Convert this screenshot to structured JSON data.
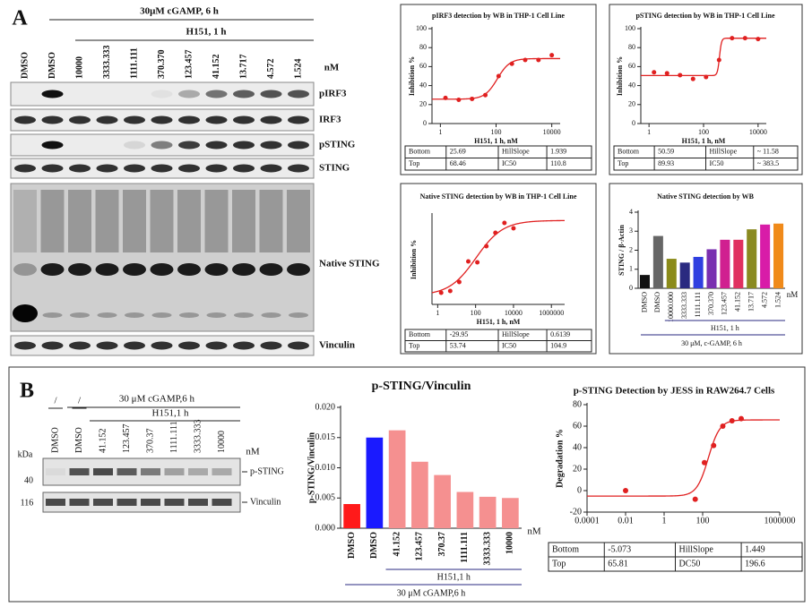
{
  "panel_a": {
    "label": "A",
    "blot": {
      "treatment": "30μM cGAMP, 6 h",
      "drug": "H151, 1 h",
      "lanes": [
        "DMSO",
        "DMSO",
        "10000",
        "3333.333",
        "1111.111",
        "370.370",
        "123.457",
        "41.152",
        "13.717",
        "4.572",
        "1.524"
      ],
      "unit": "nM",
      "rows": [
        "pIRF3",
        "IRF3",
        "pSTING",
        "STING",
        "Native STING",
        "Vinculin"
      ]
    }
  },
  "panel_b": {
    "label": "B",
    "blot": {
      "controls": [
        "/",
        "/"
      ],
      "treatment": "30 μM cGAMP,6 h",
      "drug": "H151,1 h",
      "lanes": [
        "DMSO",
        "DMSO",
        "41.152",
        "123.457",
        "370.37",
        "1111.111",
        "3333.333",
        "10000"
      ],
      "unit": "nM",
      "kda_label": "kDa",
      "markers": [
        40,
        116
      ],
      "rows": [
        "p-STING",
        "Vinculin"
      ]
    }
  },
  "chart_data": [
    {
      "type": "scatter",
      "title": "pIRF3 detection by WB in THP-1 Cell Line",
      "x_label": "H151, 1 h, nM",
      "y_label": "Inhibition %",
      "x": [
        1.524,
        4.572,
        13.717,
        41.152,
        123.457,
        370.37,
        1111.111,
        3333.333,
        10000
      ],
      "values": [
        27,
        25,
        26,
        30,
        50,
        63,
        67,
        67,
        72
      ],
      "color": "#e02020",
      "x_log": true,
      "xlim": [
        0.5,
        20000
      ],
      "xticks": [
        1,
        100,
        10000
      ],
      "ylim": [
        0,
        100
      ],
      "yticks": [
        0,
        20,
        40,
        60,
        80,
        100
      ],
      "fit_curve": true,
      "fit_table": [
        [
          "Bottom",
          "25.69",
          "HillSlope",
          "1.939"
        ],
        [
          "Top",
          "68.46",
          "IC50",
          "110.8"
        ]
      ]
    },
    {
      "type": "scatter",
      "title": "pSTING detection by WB in THP-1 Cell Line",
      "x_label": "H151, 1 h, nM",
      "y_label": "Inhibition %",
      "x": [
        1.524,
        4.572,
        13.717,
        41.152,
        123.457,
        370.37,
        1111.111,
        3333.333,
        10000
      ],
      "values": [
        54,
        53,
        51,
        47,
        49,
        67,
        90,
        90,
        89
      ],
      "color": "#e02020",
      "x_log": true,
      "xlim": [
        0.5,
        20000
      ],
      "xticks": [
        1,
        100,
        10000
      ],
      "ylim": [
        0,
        100
      ],
      "yticks": [
        0,
        20,
        40,
        60,
        80,
        100
      ],
      "fit_curve": true,
      "fit_table": [
        [
          "Bottom",
          "50.59",
          "HillSlope",
          "~ 11.58"
        ],
        [
          "Top",
          "89.93",
          "IC50",
          "~ 383.5"
        ]
      ]
    },
    {
      "type": "scatter",
      "title": "Native STING detection by WB in THP-1 Cell Line",
      "x_label": "H151, 1 h, nM",
      "y_label": "Inhibition %",
      "x": [
        1.524,
        4.572,
        13.717,
        41.152,
        123.457,
        370.37,
        1111.111,
        3333.333,
        10000
      ],
      "values": [
        -27,
        -25,
        -15,
        8,
        7,
        25,
        40,
        51,
        45
      ],
      "color": "#e02020",
      "x_log": true,
      "xlim": [
        0.5,
        5000000
      ],
      "xticks": [
        1,
        100,
        10000,
        1000000
      ],
      "ylim": [
        -40,
        60
      ],
      "fit_curve": true,
      "fit_table": [
        [
          "Bottom",
          "-29.95",
          "HillSlope",
          "0.6139"
        ],
        [
          "Top",
          "53.74",
          "IC50",
          "104.9"
        ]
      ]
    },
    {
      "type": "bar",
      "title": "Native STING detection by WB",
      "y_label": "STING / β-Actin",
      "categories": [
        "DMSO",
        "DMSO",
        "10000.000",
        "3333.333",
        "1111.111",
        "370.370",
        "123.457",
        "41.152",
        "13.717",
        "4.572",
        "1.524"
      ],
      "values": [
        0.7,
        2.75,
        1.55,
        1.35,
        1.65,
        2.05,
        2.55,
        2.55,
        3.1,
        3.35,
        3.4
      ],
      "colors": [
        "#111111",
        "#666666",
        "#8b8b1a",
        "#2a2a80",
        "#2f3fe0",
        "#7a2fb0",
        "#d02090",
        "#e03060",
        "#8a8a20",
        "#d81ca8",
        "#f08a1a"
      ],
      "ylim": [
        0,
        4
      ],
      "yticks": [
        0,
        1,
        2,
        3,
        4
      ],
      "x_unit": "nM",
      "group_labels": [
        "H151, 1 h",
        "30 μM, c-GAMP, 6 h"
      ]
    },
    {
      "type": "bar",
      "title": "p-STING/Vinculin",
      "y_label": "p-STING/Vinculin",
      "categories": [
        "DMSO",
        "DMSO",
        "41.152",
        "123.457",
        "370.37",
        "1111.111",
        "3333.333",
        "10000"
      ],
      "values": [
        0.004,
        0.015,
        0.0162,
        0.011,
        0.0088,
        0.006,
        0.0052,
        0.005
      ],
      "colors": [
        "#ff1a1a",
        "#1a1aff",
        "#f59090",
        "#f59090",
        "#f59090",
        "#f59090",
        "#f59090",
        "#f59090"
      ],
      "ylim": [
        0,
        0.02
      ],
      "yticks": [
        {
          "value": 0,
          "label": "0.000"
        },
        {
          "value": 0.005,
          "label": "0.005"
        },
        {
          "value": 0.01,
          "label": "0.010"
        },
        {
          "value": 0.015,
          "label": "0.015"
        },
        {
          "value": 0.02,
          "label": "0.020"
        }
      ],
      "x_unit": "nM",
      "group_labels": [
        "H151,1 h",
        "30 μM cGAMP,6 h"
      ]
    },
    {
      "type": "scatter",
      "title": "p-STING  Detection by JESS in RAW264.7 Cells",
      "y_label": "Degradation %",
      "x": [
        0.01,
        41.152,
        123.457,
        370.37,
        1111.111,
        3333.333,
        10000
      ],
      "values": [
        0,
        -8,
        26,
        42,
        60,
        65,
        67
      ],
      "color": "#e02020",
      "x_log": true,
      "xlim": [
        0.0001,
        1000000
      ],
      "xticks": [
        0.0001,
        0.01,
        1,
        100,
        1000000
      ],
      "ylim": [
        -20,
        80
      ],
      "yticks": [
        -20,
        0,
        20,
        40,
        60,
        80
      ],
      "fit_curve": true,
      "fit_table": [
        [
          "Bottom",
          "-5.073",
          "HillSlope",
          "1.449"
        ],
        [
          "Top",
          "65.81",
          "DC50",
          "196.6"
        ]
      ]
    }
  ]
}
